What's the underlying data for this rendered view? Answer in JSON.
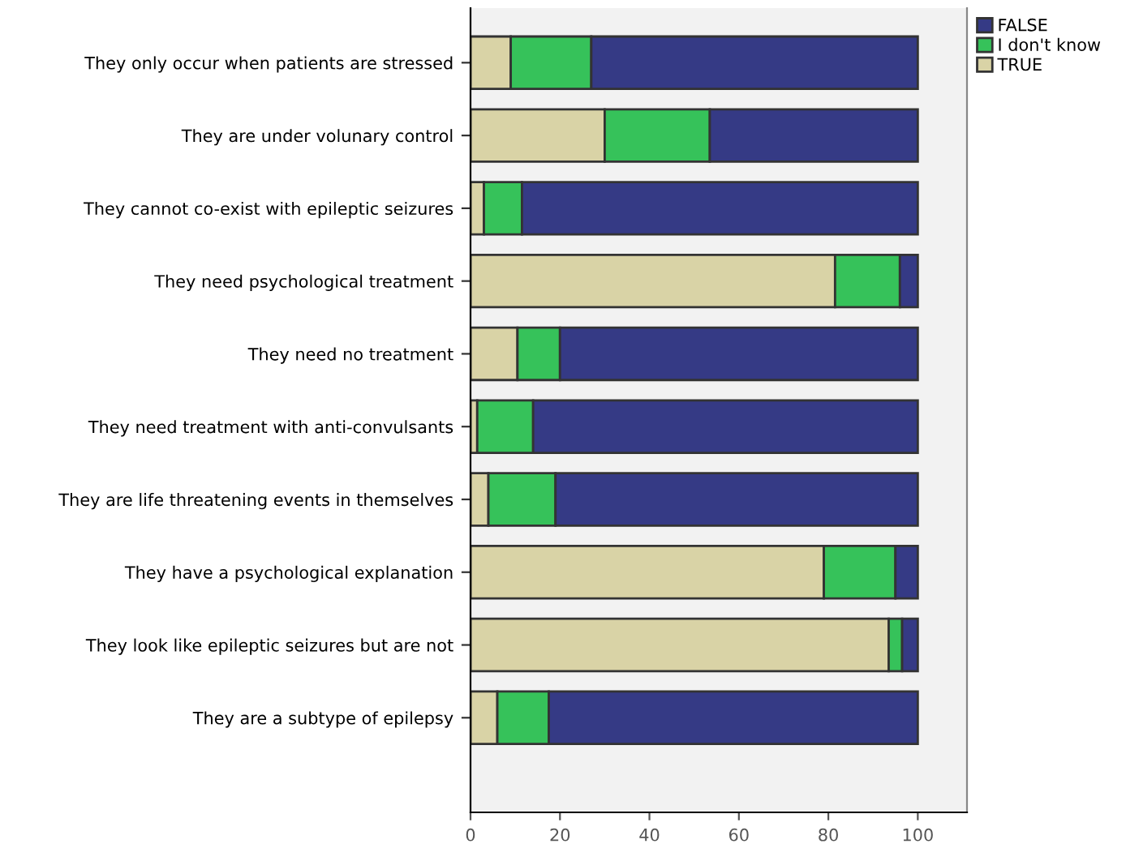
{
  "chart_data": {
    "type": "bar",
    "orientation": "horizontal",
    "stacked": true,
    "categories": [
      "They only occur when patients are stressed",
      "They are under volunary control",
      "They cannot co-exist with epileptic seizures",
      "They need psychological treatment",
      "They need no treatment",
      "They need treatment with anti-convulsants",
      "They are life threatening events in themselves",
      "They have a psychological explanation",
      "They look like epileptic seizures but are not",
      "They are a subtype of epilepsy"
    ],
    "series": [
      {
        "name": "TRUE",
        "color": "#d9d3a6",
        "values": [
          9,
          30,
          3,
          81.5,
          10.5,
          1.5,
          4,
          79,
          93.5,
          6
        ]
      },
      {
        "name": "I don't know",
        "color": "#36c25a",
        "values": [
          18,
          23.5,
          8.5,
          14.5,
          9.5,
          12.5,
          15,
          16,
          3,
          11.5
        ]
      },
      {
        "name": "FALSE",
        "color": "#353a85",
        "values": [
          73,
          46.5,
          88.5,
          4,
          80,
          86,
          81,
          5,
          3.5,
          82.5
        ]
      }
    ],
    "xlim": [
      0,
      111
    ],
    "xticks": [
      0,
      20,
      40,
      60,
      80,
      100
    ],
    "grid": false,
    "legend": "top right"
  }
}
